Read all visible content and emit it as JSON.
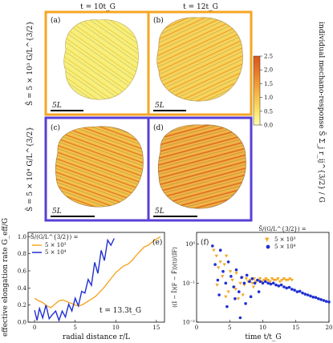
{
  "top": {
    "col_titles": [
      "t = 10t_G",
      "t = 12t_G"
    ],
    "row_labels": [
      "S̄ = 5 × 10³ G/L^{3/2}",
      "S̄ = 5 × 10⁴ G/L^{3/2}"
    ],
    "panel_tags": [
      "(a)",
      "(b)",
      "(c)",
      "(d)"
    ],
    "scalebar_label": "5L",
    "frame_colors": {
      "row1": "#f5a623",
      "row2": "#5a3fd6"
    },
    "colorbar": {
      "label": "individual mechano-response  S̄ Σ_j r_ij^{3/2} / G",
      "ticks": [
        "0.0",
        "0.5",
        "1.0",
        "1.5",
        "2.0",
        "2.5"
      ],
      "range": [
        0.0,
        2.5
      ],
      "colors": [
        "#ffffb0",
        "#fde36a",
        "#f8c04a",
        "#f29a36",
        "#e67524",
        "#d8581a"
      ]
    }
  },
  "panel_e": {
    "tag": "(e)",
    "legend_title": "S̄/(G/L^{3/2}) =",
    "annotation": "t = 13.3t_G",
    "xlabel": "radial distance  r/L",
    "ylabel": "effective elongation rate  G_eff/G",
    "xticks": [
      "0",
      "5",
      "10",
      "15"
    ],
    "yticks": [
      "0.0",
      "0.2",
      "0.4",
      "0.6",
      "0.8",
      "1.0"
    ]
  },
  "panel_f": {
    "tag": "(f)",
    "legend_title": "S̄/(G/L^{3/2}) =",
    "xlabel": "time  t/t_G",
    "ylabel": "⟨(I − Ī)(F − F̄)⟩(t)/⟨IF⟩",
    "xticks": [
      "0",
      "5",
      "10",
      "15",
      "20"
    ],
    "yticks": [
      "10⁰",
      "10⁻¹",
      "10⁻²"
    ]
  },
  "chart_data": [
    {
      "type": "line",
      "title": "",
      "xlabel": "radial distance r/L",
      "ylabel": "effective elongation rate G_eff/G",
      "xlim": [
        -0.8,
        16
      ],
      "ylim": [
        0.0,
        1.05
      ],
      "series": [
        {
          "name": "5 × 10³",
          "color": "#f5a623",
          "x": [
            0,
            0.5,
            1,
            1.5,
            2,
            2.5,
            3,
            3.5,
            4,
            4.5,
            5,
            5.5,
            6,
            6.5,
            7,
            7.5,
            8,
            8.5,
            9,
            9.5,
            10,
            10.5,
            11,
            11.5,
            12,
            12.5,
            13,
            13.5,
            14,
            14.5,
            15,
            15.5
          ],
          "y": [
            0.28,
            0.25,
            0.23,
            0.19,
            0.17,
            0.21,
            0.25,
            0.26,
            0.24,
            0.22,
            0.2,
            0.19,
            0.21,
            0.24,
            0.27,
            0.3,
            0.35,
            0.4,
            0.46,
            0.52,
            0.58,
            0.62,
            0.66,
            0.68,
            0.72,
            0.78,
            0.83,
            0.88,
            0.9,
            0.94,
            0.97,
            1.0
          ]
        },
        {
          "name": "5 × 10⁴",
          "color": "#1f2fd1",
          "x": [
            0,
            0.3,
            0.6,
            1,
            1.4,
            1.8,
            2.2,
            2.6,
            3,
            3.4,
            3.8,
            4.2,
            4.6,
            5,
            5.4,
            5.8,
            6.2,
            6.6,
            7,
            7.4,
            7.8,
            8.2,
            8.6,
            9,
            9.4,
            9.8
          ],
          "y": [
            0.14,
            0.02,
            0.16,
            0.05,
            0.2,
            0.04,
            0.09,
            0.13,
            0.02,
            0.13,
            0.06,
            0.21,
            0.13,
            0.28,
            0.19,
            0.36,
            0.34,
            0.5,
            0.43,
            0.7,
            0.57,
            0.84,
            0.72,
            0.96,
            0.9,
            0.98
          ]
        }
      ]
    },
    {
      "type": "scatter",
      "title": "",
      "xlabel": "time t/t_G",
      "ylabel": "⟨(I − Ī)(F − F̄)⟩(t)/⟨IF⟩",
      "xlim": [
        0,
        20
      ],
      "ylim": [
        0.01,
        2.0
      ],
      "yscale": "log",
      "series": [
        {
          "name": "5 × 10³",
          "marker": "triangle-down",
          "color": "#f5a623",
          "x": [
            2.6,
            3.0,
            3.3,
            3.6,
            3.9,
            4.2,
            4.5,
            4.8,
            5.1,
            5.4,
            5.7,
            6.0,
            6.3,
            6.6,
            6.9,
            7.2,
            7.5,
            7.8,
            8.1,
            8.4,
            8.7,
            9.0,
            9.3,
            9.6,
            9.9,
            10.2,
            10.5,
            10.8,
            11.1,
            11.4,
            11.7,
            12.0,
            12.3,
            12.6,
            12.9,
            13.2,
            13.5,
            13.8,
            14.1,
            14.4,
            3.1,
            4.4,
            5.9,
            7.0,
            8.6
          ],
          "y": [
            0.7,
            0.5,
            0.25,
            0.35,
            0.15,
            0.3,
            0.5,
            0.06,
            0.2,
            0.12,
            0.08,
            0.18,
            0.04,
            0.1,
            0.14,
            0.09,
            0.13,
            0.11,
            0.12,
            0.1,
            0.13,
            0.11,
            0.12,
            0.13,
            0.11,
            0.12,
            0.13,
            0.12,
            0.11,
            0.13,
            0.12,
            0.12,
            0.13,
            0.11,
            0.12,
            0.13,
            0.12,
            0.12,
            0.13,
            0.12,
            0.09,
            0.045,
            0.07,
            0.05,
            0.08
          ]
        },
        {
          "name": "5 × 10⁴",
          "marker": "circle",
          "color": "#1f2fd1",
          "x": [
            2.4,
            2.8,
            3.2,
            3.6,
            4.0,
            4.4,
            4.8,
            5.2,
            5.6,
            6.0,
            6.4,
            6.8,
            7.2,
            7.6,
            8.0,
            8.4,
            8.8,
            9.2,
            9.6,
            10.0,
            10.4,
            10.8,
            11.2,
            11.6,
            12.0,
            12.4,
            12.8,
            13.2,
            13.6,
            14.0,
            14.4,
            14.8,
            15.2,
            15.6,
            16.0,
            16.4,
            16.8,
            17.2,
            17.6,
            18.0,
            18.4,
            18.8,
            19.2,
            19.6,
            20.0,
            3.4,
            4.6,
            5.8,
            6.6,
            7.4,
            8.2,
            9.4
          ],
          "y": [
            0.9,
            0.3,
            0.12,
            0.7,
            0.2,
            0.1,
            0.35,
            0.15,
            0.08,
            0.22,
            0.06,
            0.14,
            0.1,
            0.16,
            0.11,
            0.13,
            0.1,
            0.12,
            0.11,
            0.1,
            0.11,
            0.1,
            0.095,
            0.1,
            0.09,
            0.085,
            0.09,
            0.08,
            0.075,
            0.078,
            0.07,
            0.066,
            0.06,
            0.062,
            0.056,
            0.052,
            0.05,
            0.047,
            0.044,
            0.043,
            0.04,
            0.038,
            0.036,
            0.034,
            0.033,
            0.05,
            0.025,
            0.04,
            0.013,
            0.03,
            0.045,
            0.06
          ]
        }
      ]
    }
  ]
}
